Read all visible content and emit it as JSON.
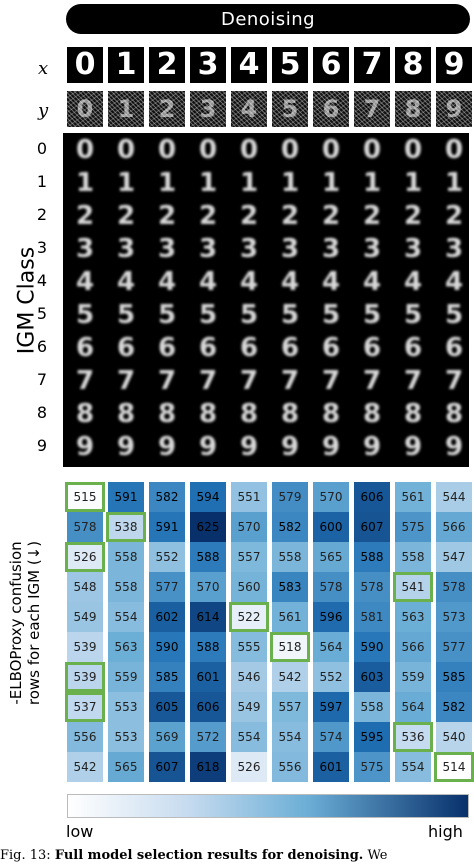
{
  "banner": "Denoising",
  "row_labels": {
    "x": "x",
    "y": "y"
  },
  "digits": [
    "0",
    "1",
    "2",
    "3",
    "4",
    "5",
    "6",
    "7",
    "8",
    "9"
  ],
  "y_label": "IGM Class",
  "confusion_label_line1": "-ELBOProxy confusion",
  "confusion_label_line2": "rows for each IGM (↓)",
  "colorbar": {
    "low": "low",
    "high": "high",
    "low_color": "#ffffff",
    "high_color": "#08306b"
  },
  "caption": {
    "prefix": "Fig. 13:",
    "bold": "Full model selection results for denoising.",
    "suffix": "We"
  },
  "chart_data": {
    "type": "heatmap",
    "rows": [
      "0",
      "1",
      "2",
      "3",
      "4",
      "5",
      "6",
      "7",
      "8",
      "9"
    ],
    "columns": [
      "0",
      "1",
      "2",
      "3",
      "4",
      "5",
      "6",
      "7",
      "8",
      "9"
    ],
    "values": [
      [
        515,
        591,
        582,
        594,
        551,
        579,
        570,
        606,
        561,
        544
      ],
      [
        578,
        538,
        591,
        625,
        570,
        582,
        600,
        607,
        575,
        566
      ],
      [
        526,
        558,
        552,
        588,
        557,
        558,
        565,
        588,
        558,
        547
      ],
      [
        548,
        558,
        577,
        570,
        560,
        583,
        578,
        578,
        541,
        578
      ],
      [
        549,
        554,
        602,
        614,
        522,
        561,
        596,
        581,
        563,
        573
      ],
      [
        539,
        563,
        590,
        588,
        555,
        518,
        564,
        590,
        566,
        577
      ],
      [
        539,
        559,
        585,
        601,
        546,
        542,
        552,
        603,
        559,
        585
      ],
      [
        537,
        553,
        605,
        606,
        549,
        557,
        597,
        558,
        564,
        582
      ],
      [
        556,
        553,
        569,
        572,
        554,
        554,
        574,
        595,
        536,
        540
      ],
      [
        542,
        565,
        607,
        618,
        526,
        556,
        601,
        575,
        554,
        514
      ]
    ],
    "highlight_min_per_row": true,
    "colorbar_labels": [
      "low",
      "high"
    ]
  }
}
